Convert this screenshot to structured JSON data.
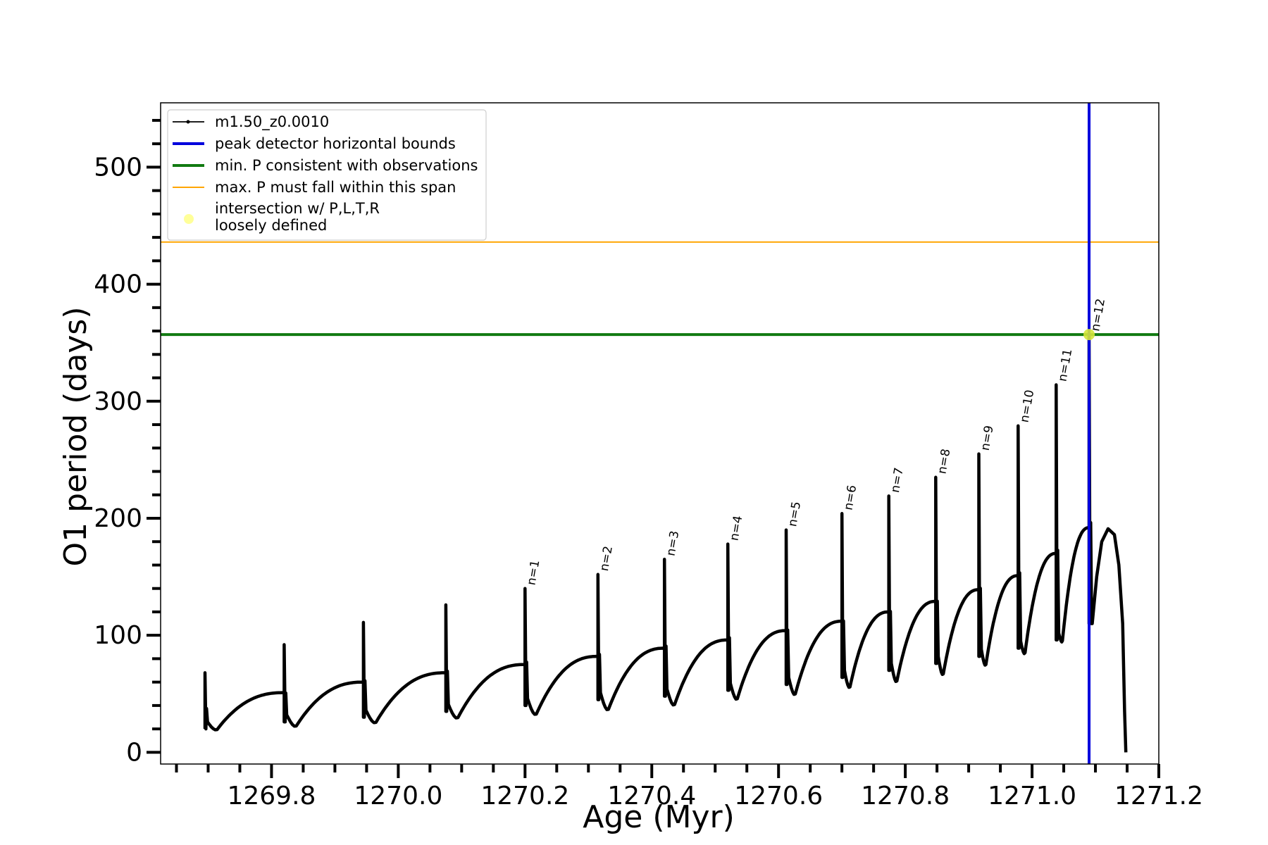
{
  "chart_data": {
    "type": "line",
    "xlabel": "Age (Myr)",
    "ylabel": "O1 period (days)",
    "xlim": [
      1269.625,
      1271.2
    ],
    "ylim": [
      -10,
      555
    ],
    "x_ticks": [
      "1269.8",
      "1270.0",
      "1270.2",
      "1270.4",
      "1270.6",
      "1270.8",
      "1271.0",
      "1271.2"
    ],
    "y_ticks": [
      "0",
      "100",
      "200",
      "300",
      "400",
      "500"
    ],
    "legend_position": "upper-left",
    "legend": [
      {
        "label": "m1.50_z0.0010",
        "kind": "line-marker",
        "color": "#000000"
      },
      {
        "label": "peak detector horizontal bounds",
        "kind": "thick-line",
        "color": "#0000dd"
      },
      {
        "label": "min. P consistent with observations",
        "kind": "thick-line",
        "color": "#117a11"
      },
      {
        "label": "max. P must fall within this span",
        "kind": "thin-line",
        "color": "#ffa500"
      },
      {
        "label_lines": [
          "intersection w/ P,L,T,R",
          "loosely defined"
        ],
        "kind": "dot",
        "color": "#ffff99"
      }
    ],
    "hlines": [
      {
        "y": 357,
        "color": "#117a11",
        "role": "min-period"
      },
      {
        "y": 436,
        "color": "#ffa500",
        "role": "max-period"
      }
    ],
    "vlines": [
      {
        "x": 1271.09,
        "color": "#0000dd",
        "role": "peak-detector"
      }
    ],
    "intersection_point": {
      "x": 1271.09,
      "y": 357,
      "color": "#d4e63a"
    },
    "series": [
      {
        "name": "m1.50_z0.0010",
        "color": "#000000",
        "pulses": [
          {
            "x0": 1269.695,
            "x1": 1269.82,
            "spike": 68,
            "dip_lo": 20,
            "trough": 19,
            "end": 51
          },
          {
            "x0": 1269.82,
            "x1": 1269.945,
            "spike": 92,
            "dip_lo": 26,
            "trough": 22,
            "end": 60
          },
          {
            "x0": 1269.945,
            "x1": 1270.075,
            "spike": 111,
            "dip_lo": 30,
            "trough": 25,
            "end": 68
          },
          {
            "x0": 1270.075,
            "x1": 1270.2,
            "spike": 126,
            "dip_lo": 35,
            "trough": 29,
            "end": 75
          },
          {
            "x0": 1270.2,
            "x1": 1270.315,
            "spike": 140,
            "dip_lo": 40,
            "trough": 32,
            "end": 82
          },
          {
            "x0": 1270.315,
            "x1": 1270.42,
            "spike": 152,
            "dip_lo": 45,
            "trough": 36,
            "end": 89
          },
          {
            "x0": 1270.42,
            "x1": 1270.52,
            "spike": 165,
            "dip_lo": 48,
            "trough": 40,
            "end": 96
          },
          {
            "x0": 1270.52,
            "x1": 1270.612,
            "spike": 178,
            "dip_lo": 53,
            "trough": 45,
            "end": 104
          },
          {
            "x0": 1270.612,
            "x1": 1270.7,
            "spike": 190,
            "dip_lo": 58,
            "trough": 49,
            "end": 112
          },
          {
            "x0": 1270.7,
            "x1": 1270.774,
            "spike": 204,
            "dip_lo": 64,
            "trough": 55,
            "end": 120
          },
          {
            "x0": 1270.774,
            "x1": 1270.848,
            "spike": 219,
            "dip_lo": 70,
            "trough": 60,
            "end": 129
          },
          {
            "x0": 1270.848,
            "x1": 1270.916,
            "spike": 235,
            "dip_lo": 76,
            "trough": 66,
            "end": 139
          },
          {
            "x0": 1270.916,
            "x1": 1270.978,
            "spike": 255,
            "dip_lo": 82,
            "trough": 74,
            "end": 151
          },
          {
            "x0": 1270.978,
            "x1": 1271.038,
            "spike": 279,
            "dip_lo": 89,
            "trough": 84,
            "end": 170
          },
          {
            "x0": 1271.038,
            "x1": 1271.09,
            "spike": 314,
            "dip_lo": 96,
            "trough": 94,
            "end": 192
          },
          {
            "x0": 1271.09,
            "x1": 1271.095,
            "spike": 357,
            "dip_lo": 110,
            "trough": 110,
            "end": 110
          }
        ],
        "tail": [
          [
            1271.095,
            110
          ],
          [
            1271.102,
            150
          ],
          [
            1271.11,
            180
          ],
          [
            1271.12,
            191
          ],
          [
            1271.13,
            186
          ],
          [
            1271.137,
            160
          ],
          [
            1271.143,
            110
          ],
          [
            1271.146,
            35
          ],
          [
            1271.148,
            0
          ]
        ]
      }
    ],
    "annotations": [
      {
        "text": "n=1",
        "x": 1270.2,
        "y": 140
      },
      {
        "text": "n=2",
        "x": 1270.315,
        "y": 152
      },
      {
        "text": "n=3",
        "x": 1270.42,
        "y": 165
      },
      {
        "text": "n=4",
        "x": 1270.52,
        "y": 178
      },
      {
        "text": "n=5",
        "x": 1270.612,
        "y": 190
      },
      {
        "text": "n=6",
        "x": 1270.7,
        "y": 204
      },
      {
        "text": "n=7",
        "x": 1270.774,
        "y": 219
      },
      {
        "text": "n=8",
        "x": 1270.848,
        "y": 235
      },
      {
        "text": "n=9",
        "x": 1270.916,
        "y": 255
      },
      {
        "text": "n=10",
        "x": 1270.978,
        "y": 279
      },
      {
        "text": "n=11",
        "x": 1271.038,
        "y": 314
      },
      {
        "text": "n=12",
        "x": 1271.09,
        "y": 357
      }
    ]
  }
}
